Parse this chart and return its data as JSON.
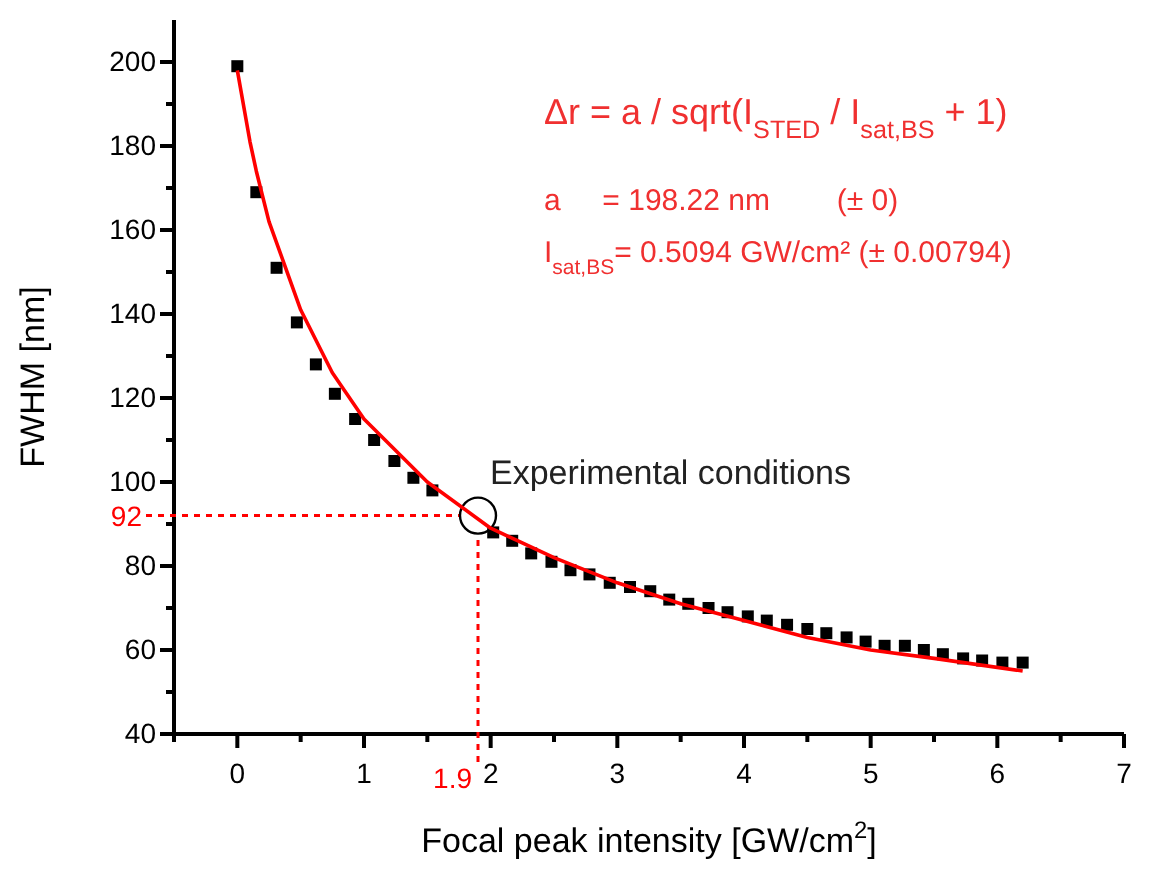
{
  "chart_data": {
    "type": "scatter",
    "xlabel": "Focal peak intensity [GW/cm$^{2}$]",
    "ylabel": "FWHM [nm]",
    "xlim": [
      -0.5,
      7
    ],
    "ylim": [
      40,
      210
    ],
    "xticks": [
      {
        "value": -0.5,
        "label": null
      },
      0,
      {
        "value": 0.5,
        "label": null
      },
      1,
      {
        "value": 1.5,
        "label": null
      },
      2,
      {
        "value": 2.5,
        "label": null
      },
      3,
      {
        "value": 3.5,
        "label": null
      },
      4,
      {
        "value": 4.5,
        "label": null
      },
      5,
      {
        "value": 5.5,
        "label": null
      },
      6,
      {
        "value": 6.5,
        "label": null
      },
      7
    ],
    "yticks": [
      40,
      {
        "value": 50,
        "label": null
      },
      60,
      {
        "value": 70,
        "label": null
      },
      80,
      {
        "value": 90,
        "label": null
      },
      100,
      {
        "value": 110,
        "label": null
      },
      120,
      {
        "value": 130,
        "label": null
      },
      140,
      {
        "value": 150,
        "label": null
      },
      160,
      {
        "value": 170,
        "label": null
      },
      180,
      {
        "value": 190,
        "label": null
      },
      200
    ],
    "grid": false,
    "series": [
      {
        "marker": "square",
        "color": "#000000",
        "x": [
          0,
          0.15,
          0.31,
          0.47,
          0.62,
          0.77,
          0.93,
          1.08,
          1.24,
          1.39,
          1.54,
          2.02,
          2.17,
          2.32,
          2.48,
          2.63,
          2.78,
          2.94,
          3.1,
          3.26,
          3.41,
          3.56,
          3.72,
          3.87,
          4.03,
          4.18,
          4.34,
          4.5,
          4.65,
          4.81,
          4.96,
          5.11,
          5.27,
          5.42,
          5.57,
          5.73,
          5.88,
          6.04,
          6.2
        ],
        "values": [
          199,
          169,
          151,
          138,
          128,
          121,
          115,
          110,
          105,
          101,
          98,
          88,
          86,
          83,
          81,
          79,
          78,
          76,
          75,
          74,
          72,
          71,
          70,
          69,
          68,
          67,
          66,
          65,
          64,
          63,
          62,
          61,
          61,
          60,
          59,
          58,
          57.5,
          57,
          57
        ]
      },
      {
        "type": "line",
        "marker": "none",
        "line_style": "solid",
        "color": "#ff0000",
        "x": [
          0,
          0.1,
          0.15,
          0.25,
          0.5,
          0.75,
          1,
          1.5,
          2,
          2.5,
          3,
          3.5,
          4,
          4.5,
          5,
          5.5,
          6.2
        ],
        "values": [
          198,
          181,
          174,
          162,
          141,
          126,
          115,
          100,
          89,
          82,
          76,
          71,
          67,
          63,
          60,
          58,
          55
        ]
      }
    ],
    "ref_lines": [
      {
        "axis": "x",
        "value": 1.9,
        "label": "1.9",
        "color": "#ff0000",
        "line_style": "dotted"
      },
      {
        "axis": "y",
        "value": 92,
        "label": "92",
        "color": "#ff0000",
        "line_style": "dotted"
      }
    ],
    "annotations": [
      {
        "text": "Experimental conditions",
        "x": 1.9,
        "y": 92
      },
      "Δr = a / sqrt(I$_{STED}$ / I$_{sat,BS}$ + 1)",
      "a     = 198.22 nm        (± 0)",
      "I$_{sat,BS}$= 0.5094 GW/cm² (± 0.00794)"
    ]
  }
}
